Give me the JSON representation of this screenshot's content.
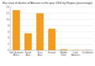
{
  "chart_data": {
    "type": "bar",
    "title": "Bar chart of deaths of Africans in the year 1900 by Region (percentage)",
    "categories": [
      "Sub-Saharan Africa",
      "South Asia",
      "East Asia",
      "Europe",
      "Middle East",
      "Latin America",
      "Caribbean"
    ],
    "values": [
      13,
      5.5,
      12,
      7,
      0.3,
      0.1,
      0.1
    ],
    "color": "#f39c1f",
    "ylim": [
      0,
      14
    ],
    "yticks": [
      0,
      2,
      4,
      6,
      8,
      10,
      12,
      14
    ],
    "grid": true
  }
}
